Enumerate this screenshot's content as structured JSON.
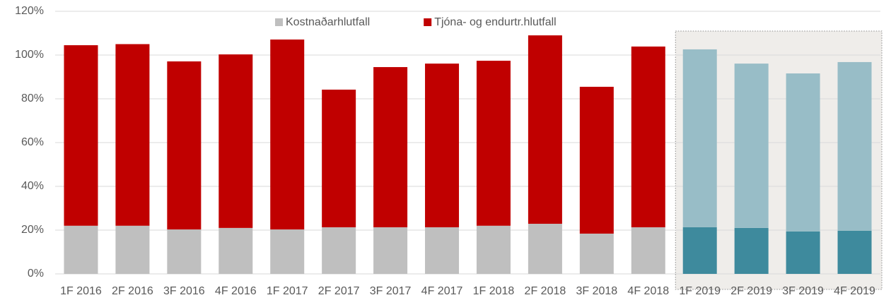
{
  "chart_data": {
    "type": "stacked_bar",
    "categories": [
      "1F 2016",
      "2F 2016",
      "3F 2016",
      "4F 2016",
      "1F 2017",
      "2F 2017",
      "3F 2017",
      "4F 2017",
      "1F 2018",
      "2F 2018",
      "3F 2018",
      "4F 2018",
      "1F 2019",
      "2F 2019",
      "3F 2019",
      "4F 2019"
    ],
    "series": [
      {
        "name": "Kostnaðarhlutfall",
        "color": "#bfbfbf",
        "colors": [
          "#bfbfbf",
          "#bfbfbf",
          "#bfbfbf",
          "#bfbfbf",
          "#bfbfbf",
          "#bfbfbf",
          "#bfbfbf",
          "#bfbfbf",
          "#bfbfbf",
          "#bfbfbf",
          "#bfbfbf",
          "#bfbfbf",
          "#3e8a9d",
          "#3e8a9d",
          "#3e8a9d",
          "#3e8a9d"
        ],
        "values": [
          22,
          22,
          20.3,
          21,
          20.3,
          21.3,
          21.3,
          21.3,
          22,
          22.9,
          18.4,
          21.3,
          21.3,
          21,
          19.4,
          19.7
        ]
      },
      {
        "name": "Tjóna- og endurtr.hlutfall",
        "color": "#c00000",
        "colors": [
          "#c00000",
          "#c00000",
          "#c00000",
          "#c00000",
          "#c00000",
          "#c00000",
          "#c00000",
          "#c00000",
          "#c00000",
          "#c00000",
          "#c00000",
          "#c00000",
          "#98bdc7",
          "#98bdc7",
          "#98bdc7",
          "#98bdc7"
        ],
        "values": [
          82.5,
          83,
          76.8,
          79.3,
          86.8,
          62.9,
          73.2,
          74.8,
          75.4,
          86.1,
          67.1,
          82.6,
          81.3,
          75.1,
          72.2,
          77.1
        ]
      }
    ],
    "ylim": [
      0,
      120
    ],
    "yticks": [
      {
        "value": 0,
        "label": "0%"
      },
      {
        "value": 20,
        "label": "20%"
      },
      {
        "value": 40,
        "label": "40%"
      },
      {
        "value": 60,
        "label": "60%"
      },
      {
        "value": 80,
        "label": "80%"
      },
      {
        "value": 100,
        "label": "100%"
      },
      {
        "value": 120,
        "label": "120%"
      }
    ],
    "grid": true,
    "legend": "top"
  }
}
